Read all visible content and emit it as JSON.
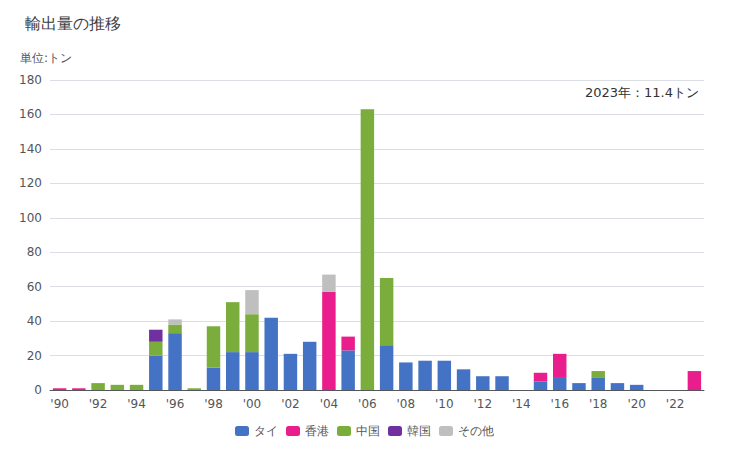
{
  "chart_data": {
    "type": "bar",
    "title": "輸出量の推移",
    "ylabel": "単位:トン",
    "annotation": "2023年：11.4トン",
    "categories": [
      "'90",
      null,
      "'92",
      null,
      "'94",
      null,
      "'96",
      null,
      "'98",
      null,
      "'00",
      null,
      "'02",
      null,
      "'04",
      null,
      "'06",
      null,
      "'08",
      null,
      "'10",
      null,
      "'12",
      null,
      "'14",
      null,
      "'16",
      null,
      "'18",
      null,
      "'20",
      null,
      "'22",
      null
    ],
    "series": [
      {
        "name": "タイ",
        "color": "#4472C4",
        "values": [
          0,
          0,
          0,
          0,
          0,
          20,
          33,
          0,
          13,
          22,
          22,
          42,
          21,
          28,
          0,
          23,
          0,
          26,
          16,
          17,
          17,
          12,
          8,
          8,
          0,
          5,
          7,
          4,
          7,
          4,
          3,
          0,
          0,
          0
        ]
      },
      {
        "name": "香港",
        "color": "#E91E8C",
        "values": [
          1,
          1,
          0,
          0,
          0,
          0,
          0,
          0,
          0,
          0,
          0,
          0,
          0,
          0,
          57,
          8,
          0,
          0,
          0,
          0,
          0,
          0,
          0,
          0,
          0,
          5,
          14,
          0,
          0,
          0,
          0,
          0,
          0,
          11
        ]
      },
      {
        "name": "中国",
        "color": "#7AAD3B",
        "values": [
          0,
          0,
          4,
          3,
          3,
          8,
          5,
          1,
          24,
          29,
          22,
          0,
          0,
          0,
          0,
          0,
          163,
          39,
          0,
          0,
          0,
          0,
          0,
          0,
          0,
          0,
          0,
          0,
          4,
          0,
          0,
          0,
          0,
          0
        ]
      },
      {
        "name": "韓国",
        "color": "#7030A0",
        "values": [
          0,
          0,
          0,
          0,
          0,
          7,
          0,
          0,
          0,
          0,
          0,
          0,
          0,
          0,
          0,
          0,
          0,
          0,
          0,
          0,
          0,
          0,
          0,
          0,
          0,
          0,
          0,
          0,
          0,
          0,
          0,
          0,
          0,
          0
        ]
      },
      {
        "name": "その他",
        "color": "#BFBFBF",
        "values": [
          0,
          0,
          0,
          0,
          0,
          0,
          3,
          0,
          0,
          0,
          14,
          0,
          0,
          0,
          10,
          0,
          0,
          0,
          0,
          0,
          0,
          0,
          0,
          0,
          0,
          0,
          0,
          0,
          0,
          0,
          0,
          0,
          0,
          0
        ]
      }
    ],
    "stacked": true,
    "ylim": [
      0,
      180
    ],
    "yticks": [
      0,
      20,
      40,
      60,
      80,
      100,
      120,
      140,
      160,
      180
    ],
    "grid": true,
    "legend": "bottom"
  }
}
